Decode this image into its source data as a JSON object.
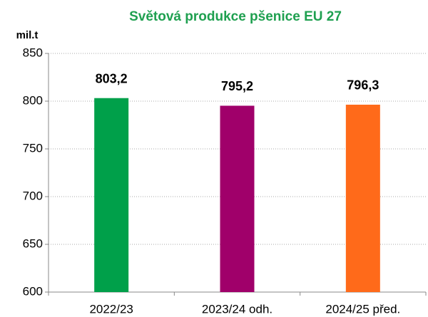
{
  "chart_data": {
    "type": "bar",
    "title": "Světová produkce pšenice  EU 27",
    "title_color": "#1fa050",
    "y_label": "mil.t",
    "categories": [
      "2022/23",
      "2023/24 odh.",
      "2024/25 před."
    ],
    "values": [
      803.2,
      795.2,
      796.3
    ],
    "value_labels": [
      "803,2",
      "795,2",
      "796,3"
    ],
    "colors": [
      "#00a04a",
      "#a0006a",
      "#ff6a1a"
    ],
    "ylim": [
      600,
      850
    ],
    "yticks": [
      600,
      650,
      700,
      750,
      800,
      850
    ],
    "grid": true
  }
}
